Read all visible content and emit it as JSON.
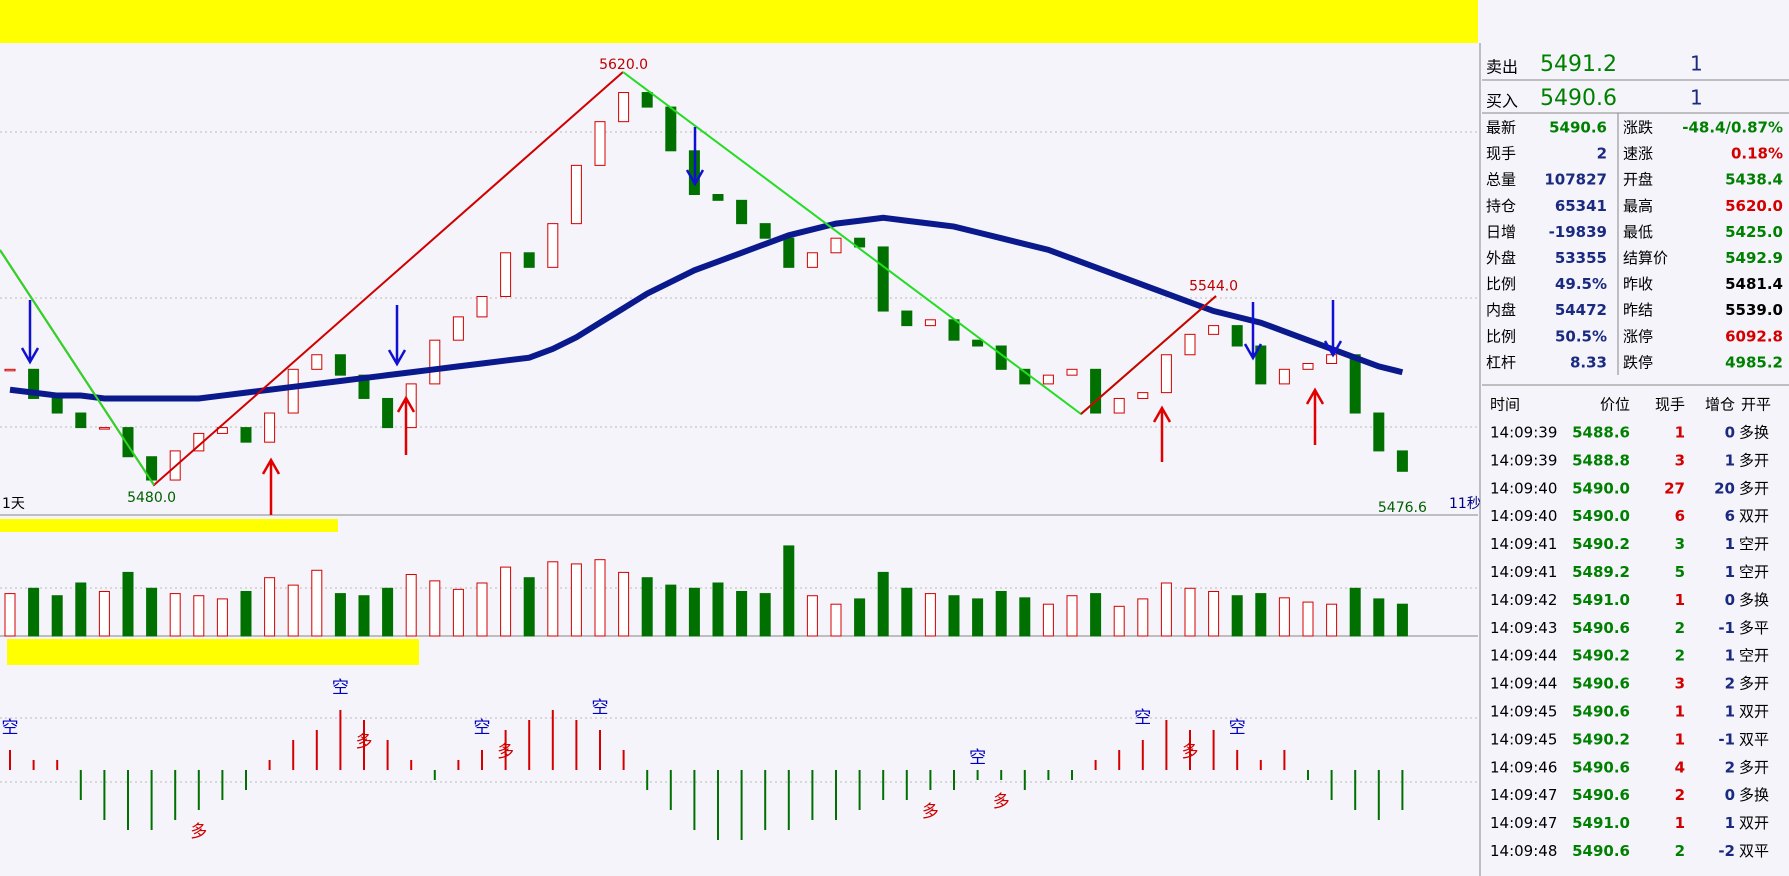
{
  "chart_data": {
    "type": "candlestick",
    "ylim": [
      5470,
      5632
    ],
    "closes": [
      5520,
      5510,
      5505,
      5500,
      5500,
      5490,
      5482,
      5492,
      5498,
      5500,
      5495,
      5505,
      5520,
      5525,
      5518,
      5510,
      5500,
      5515,
      5530,
      5538,
      5545,
      5560,
      5555,
      5570,
      5590,
      5605,
      5615,
      5610,
      5595,
      5580,
      5578,
      5570,
      5565,
      5555,
      5560,
      5565,
      5562,
      5540,
      5535,
      5537,
      5530,
      5528,
      5520,
      5515,
      5518,
      5520,
      5505,
      5510,
      5512,
      5525,
      5532,
      5535,
      5528,
      5515,
      5520,
      5522,
      5525,
      5505,
      5492,
      5485
    ],
    "ma": [
      5513,
      5512,
      5511,
      5511,
      5510,
      5510,
      5510,
      5510,
      5510,
      5511,
      5512,
      5513,
      5514,
      5515,
      5516,
      5517,
      5518,
      5519,
      5520,
      5521,
      5522,
      5523,
      5524,
      5527,
      5531,
      5536,
      5541,
      5546,
      5550,
      5554,
      5557,
      5560,
      5563,
      5566,
      5568,
      5570,
      5571,
      5572,
      5571,
      5570,
      5569,
      5567,
      5565,
      5563,
      5561,
      5558,
      5555,
      5552,
      5549,
      5546,
      5543,
      5540,
      5538,
      5536,
      5533,
      5530,
      5527,
      5524,
      5521,
      5519
    ],
    "ma_color": "#0a1a8c",
    "up_color": "#d40000",
    "down_color": "#007000",
    "annotations": [
      {
        "label": "5620.0",
        "value": 5620,
        "index": 26
      },
      {
        "label": "5480.0",
        "value": 5480,
        "index": 6
      },
      {
        "label": "5544.0",
        "value": 5544,
        "index": 51
      },
      {
        "label": "5476.6",
        "value": 5476.6,
        "index": 59
      }
    ],
    "period_label": "1天",
    "timer_label": "11秒",
    "volume": [
      40,
      45,
      38,
      50,
      42,
      60,
      45,
      40,
      38,
      35,
      42,
      55,
      48,
      62,
      40,
      38,
      45,
      58,
      52,
      44,
      50,
      65,
      55,
      70,
      68,
      72,
      60,
      55,
      48,
      45,
      50,
      42,
      40,
      85,
      38,
      30,
      35,
      60,
      45,
      40,
      38,
      35,
      42,
      36,
      30,
      38,
      40,
      28,
      35,
      50,
      45,
      42,
      38,
      40,
      36,
      32,
      30,
      45,
      35,
      30
    ],
    "volume_lim": [
      0,
      100
    ],
    "macd": [
      2,
      1,
      1,
      -3,
      -5,
      -6,
      -6,
      -5,
      -4,
      -3,
      -2,
      1,
      3,
      4,
      6,
      5,
      3,
      1,
      -1,
      1,
      2,
      4,
      5,
      6,
      5,
      4,
      2,
      -2,
      -4,
      -6,
      -7,
      -7,
      -6,
      -6,
      -5,
      -5,
      -4,
      -3,
      -3,
      -2,
      -2,
      -1,
      -1,
      -2,
      -1,
      -1,
      1,
      2,
      3,
      5,
      4,
      4,
      2,
      1,
      2,
      -1,
      -3,
      -4,
      -5,
      -4
    ],
    "macd_lim": [
      -10,
      10
    ],
    "signals": [
      {
        "label": "空",
        "index": 0
      },
      {
        "label": "多",
        "index": 8
      },
      {
        "label": "空",
        "index": 14
      },
      {
        "label": "多",
        "index": 15
      },
      {
        "label": "空",
        "index": 20
      },
      {
        "label": "多",
        "index": 21
      },
      {
        "label": "空",
        "index": 25
      },
      {
        "label": "多",
        "index": 39
      },
      {
        "label": "空",
        "index": 41
      },
      {
        "label": "多",
        "index": 42
      },
      {
        "label": "空",
        "index": 48
      },
      {
        "label": "多",
        "index": 50
      },
      {
        "label": "空",
        "index": 52
      }
    ]
  },
  "quote": {
    "sell": [
      "卖出",
      "5491.2",
      "1"
    ],
    "buy": [
      "买入",
      "5490.6",
      "1"
    ]
  },
  "stats": {
    "rows": [
      [
        "最新",
        "5490.6",
        "涨跌",
        "-48.4/0.87%"
      ],
      [
        "现手",
        "2",
        "速涨",
        "0.18%"
      ],
      [
        "总量",
        "107827",
        "开盘",
        "5438.4"
      ],
      [
        "持仓",
        "65341",
        "最高",
        "5620.0"
      ],
      [
        "日增",
        "-19839",
        "最低",
        "5425.0"
      ],
      [
        "外盘",
        "53355",
        "结算价",
        "5492.9"
      ],
      [
        "比例",
        "49.5%",
        "昨收",
        "5481.4"
      ],
      [
        "内盘",
        "54472",
        "昨结",
        "5539.0"
      ],
      [
        "比例",
        "50.5%",
        "涨停",
        "6092.8"
      ],
      [
        "杠杆",
        "8.33",
        "跌停",
        "4985.2"
      ]
    ],
    "colors": [
      [
        "#008000",
        "#008000"
      ],
      [
        "#1a2a80",
        "#d40000"
      ],
      [
        "#1a2a80",
        "#008000"
      ],
      [
        "#1a2a80",
        "#d40000"
      ],
      [
        "#1a2a80",
        "#008000"
      ],
      [
        "#1a2a80",
        "#008000"
      ],
      [
        "#1a2a80",
        "#000000"
      ],
      [
        "#1a2a80",
        "#000000"
      ],
      [
        "#1a2a80",
        "#d40000"
      ],
      [
        "#1a2a80",
        "#008000"
      ]
    ]
  },
  "trades": {
    "header": [
      "时间",
      "价位",
      "现手",
      "增仓",
      "开平"
    ],
    "rows": [
      [
        "14:09:39",
        "5488.6",
        "1",
        "0",
        "多换"
      ],
      [
        "14:09:39",
        "5488.8",
        "3",
        "1",
        "多开"
      ],
      [
        "14:09:40",
        "5490.0",
        "27",
        "20",
        "多开"
      ],
      [
        "14:09:40",
        "5490.0",
        "6",
        "6",
        "双开"
      ],
      [
        "14:09:41",
        "5490.2",
        "3",
        "1",
        "空开"
      ],
      [
        "14:09:41",
        "5489.2",
        "5",
        "1",
        "空开"
      ],
      [
        "14:09:42",
        "5491.0",
        "1",
        "0",
        "多换"
      ],
      [
        "14:09:43",
        "5490.6",
        "2",
        "-1",
        "多平"
      ],
      [
        "14:09:44",
        "5490.2",
        "2",
        "1",
        "空开"
      ],
      [
        "14:09:44",
        "5490.6",
        "3",
        "2",
        "多开"
      ],
      [
        "14:09:45",
        "5490.6",
        "1",
        "1",
        "双开"
      ],
      [
        "14:09:45",
        "5490.2",
        "1",
        "-1",
        "双平"
      ],
      [
        "14:09:46",
        "5490.6",
        "4",
        "2",
        "多开"
      ],
      [
        "14:09:47",
        "5490.6",
        "2",
        "0",
        "多换"
      ],
      [
        "14:09:47",
        "5491.0",
        "1",
        "1",
        "双开"
      ],
      [
        "14:09:48",
        "5490.6",
        "2",
        "-2",
        "双平"
      ]
    ],
    "colors": [
      "#d40000",
      "#d40000",
      "#d40000",
      "#d40000",
      "#008000",
      "#008000",
      "#d40000",
      "#008000",
      "#008000",
      "#d40000",
      "#d40000",
      "#d40000",
      "#d40000",
      "#d40000",
      "#d40000",
      "#008000"
    ]
  }
}
